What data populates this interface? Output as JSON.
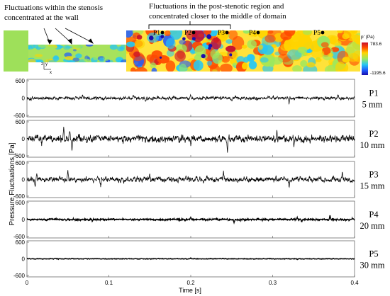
{
  "chart_data": {
    "type": "line",
    "xlabel": "Time [s]",
    "ylabel": "Pressure Fluctuations [Pa]",
    "xlim": [
      0,
      0.4
    ],
    "ylim": [
      -600,
      600
    ],
    "x_ticks": [
      "0",
      "0.1",
      "0.2",
      "0.3",
      "0.4"
    ],
    "y_tick_labels": [
      "600",
      "0",
      "-600"
    ],
    "series": [
      {
        "name": "P1",
        "distance": "5 mm",
        "amplitude": 90,
        "spikes": [
          [
            0.005,
            -110
          ],
          [
            0.068,
            120
          ],
          [
            0.13,
            100
          ],
          [
            0.145,
            -130
          ],
          [
            0.2,
            110
          ],
          [
            0.25,
            -120
          ],
          [
            0.32,
            -170
          ],
          [
            0.38,
            110
          ]
        ]
      },
      {
        "name": "P2",
        "distance": "10 mm",
        "amplitude": 190,
        "spikes": [
          [
            0.045,
            430
          ],
          [
            0.052,
            350
          ],
          [
            0.055,
            -250
          ],
          [
            0.018,
            -260
          ],
          [
            0.2,
            -250
          ],
          [
            0.245,
            -370
          ],
          [
            0.305,
            300
          ],
          [
            0.326,
            -300
          ]
        ]
      },
      {
        "name": "P3",
        "distance": "15 mm",
        "amplitude": 150,
        "spikes": [
          [
            0.01,
            -200
          ],
          [
            0.012,
            250
          ],
          [
            0.05,
            300
          ],
          [
            0.09,
            -240
          ],
          [
            0.15,
            200
          ],
          [
            0.24,
            250
          ],
          [
            0.32,
            -300
          ],
          [
            0.385,
            240
          ]
        ]
      },
      {
        "name": "P4",
        "distance": "20 mm",
        "amplitude": 45,
        "spikes": [
          [
            0.08,
            -70
          ],
          [
            0.2,
            80
          ],
          [
            0.253,
            -100
          ],
          [
            0.33,
            80
          ],
          [
            0.335,
            -90
          ],
          [
            0.37,
            140
          ]
        ]
      },
      {
        "name": "P5",
        "distance": "30 mm",
        "amplitude": 18,
        "spikes": [
          [
            0.2,
            25
          ],
          [
            0.33,
            -30
          ]
        ]
      }
    ]
  },
  "cfd_image": {
    "annotation_left": [
      "Fluctuations within the stenosis",
      "concentrated at the wall"
    ],
    "annotation_right": [
      "Fluctuations in the post-stenotic region and",
      "concentrated closer to the middle of domain"
    ],
    "probes": [
      "P1",
      "P2",
      "P3",
      "P4",
      "P5"
    ],
    "axis_z": "z",
    "axis_y": "y",
    "axis_x": "x",
    "colorbar_title": "p' (Pa)",
    "colorbar_max": "783.6",
    "colorbar_min": "-1195.6"
  },
  "colors": {
    "trace": "#000000",
    "field_base": "#9ee05a",
    "colorbar": [
      "#c8102e",
      "#ff4a00",
      "#ffd400",
      "#9be860",
      "#27c7f2",
      "#1e5bff",
      "#1a0dab"
    ]
  }
}
